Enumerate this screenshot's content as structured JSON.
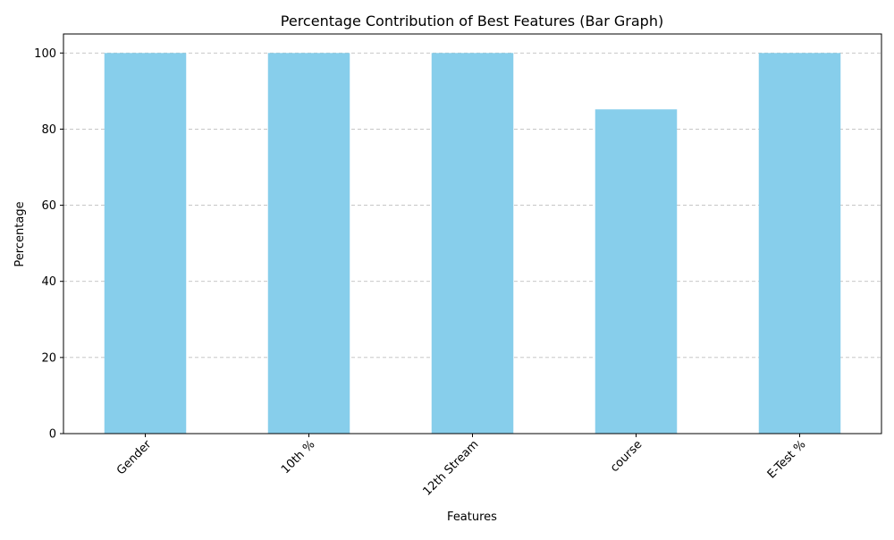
{
  "chart_data": {
    "type": "bar",
    "title": "Percentage Contribution of Best Features (Bar Graph)",
    "xlabel": "Features",
    "ylabel": "Percentage",
    "categories": [
      "Gender",
      "10th %",
      "12th Stream",
      "course",
      "E-Test %"
    ],
    "values": [
      100,
      100,
      100,
      85.2,
      100
    ],
    "ylim": [
      0,
      105
    ],
    "yticks": [
      "0",
      "20",
      "40",
      "60",
      "80",
      "100"
    ],
    "grid": "y-dashed",
    "legend": "none",
    "bar_color": "#87CEEB",
    "grid_color": "#bfbfbf"
  }
}
